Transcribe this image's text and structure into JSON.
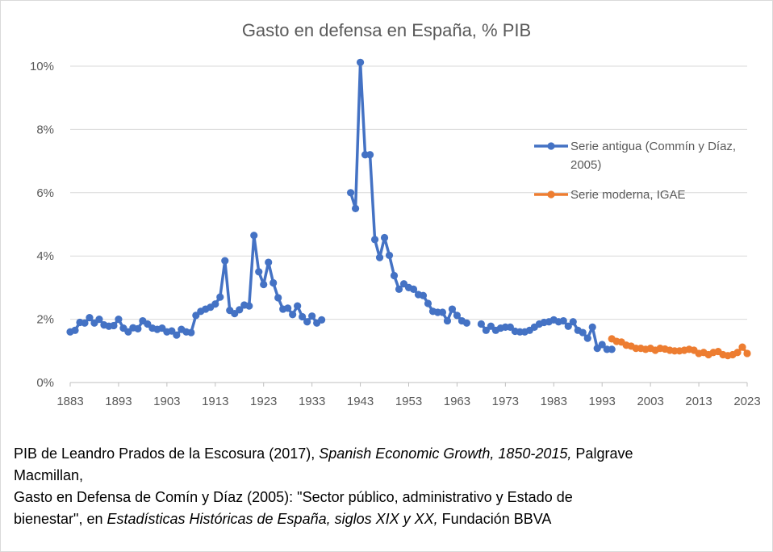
{
  "chart_data": {
    "type": "line",
    "title": "Gasto en defensa en España, % PIB",
    "xlabel": "",
    "ylabel": "",
    "xlim": [
      1883,
      2023
    ],
    "ylim": [
      0,
      10
    ],
    "x_ticks": [
      "1883",
      "1893",
      "1903",
      "1913",
      "1923",
      "1933",
      "1943",
      "1953",
      "1963",
      "1973",
      "1983",
      "1993",
      "2003",
      "2013",
      "2023"
    ],
    "y_ticks": [
      "0%",
      "2%",
      "4%",
      "6%",
      "8%",
      "10%"
    ],
    "grid": "horizontal",
    "legend_position": "right",
    "series": [
      {
        "name": "Serie antigua (Commín y Díaz, 2005)",
        "color": "#4472c4",
        "points": [
          [
            1883,
            1.6
          ],
          [
            1884,
            1.65
          ],
          [
            1885,
            1.9
          ],
          [
            1886,
            1.88
          ],
          [
            1887,
            2.05
          ],
          [
            1888,
            1.88
          ],
          [
            1889,
            2.0
          ],
          [
            1890,
            1.82
          ],
          [
            1891,
            1.78
          ],
          [
            1892,
            1.8
          ],
          [
            1893,
            2.0
          ],
          [
            1894,
            1.72
          ],
          [
            1895,
            1.6
          ],
          [
            1896,
            1.73
          ],
          [
            1897,
            1.7
          ],
          [
            1898,
            1.95
          ],
          [
            1899,
            1.85
          ],
          [
            1900,
            1.72
          ],
          [
            1901,
            1.68
          ],
          [
            1902,
            1.72
          ],
          [
            1903,
            1.6
          ],
          [
            1904,
            1.63
          ],
          [
            1905,
            1.5
          ],
          [
            1906,
            1.68
          ],
          [
            1907,
            1.6
          ],
          [
            1908,
            1.58
          ],
          [
            1909,
            2.12
          ],
          [
            1910,
            2.25
          ],
          [
            1911,
            2.32
          ],
          [
            1912,
            2.38
          ],
          [
            1913,
            2.48
          ],
          [
            1914,
            2.7
          ],
          [
            1915,
            3.85
          ],
          [
            1916,
            2.28
          ],
          [
            1917,
            2.18
          ],
          [
            1918,
            2.3
          ],
          [
            1919,
            2.45
          ],
          [
            1920,
            2.42
          ],
          [
            1921,
            4.65
          ],
          [
            1922,
            3.5
          ],
          [
            1923,
            3.1
          ],
          [
            1924,
            3.8
          ],
          [
            1925,
            3.15
          ],
          [
            1926,
            2.68
          ],
          [
            1927,
            2.32
          ],
          [
            1928,
            2.35
          ],
          [
            1929,
            2.15
          ],
          [
            1930,
            2.42
          ],
          [
            1931,
            2.08
          ],
          [
            1932,
            1.92
          ],
          [
            1933,
            2.1
          ],
          [
            1934,
            1.88
          ],
          [
            1935,
            1.98
          ],
          null,
          [
            1941,
            6.0
          ],
          [
            1942,
            5.5
          ],
          [
            1943,
            10.12
          ],
          [
            1944,
            7.2
          ],
          [
            1945,
            7.2
          ],
          [
            1946,
            4.52
          ],
          [
            1947,
            3.95
          ],
          [
            1948,
            4.58
          ],
          [
            1949,
            4.02
          ],
          [
            1950,
            3.38
          ],
          [
            1951,
            2.95
          ],
          [
            1952,
            3.12
          ],
          [
            1953,
            3.0
          ],
          [
            1954,
            2.95
          ],
          [
            1955,
            2.78
          ],
          [
            1956,
            2.75
          ],
          [
            1957,
            2.5
          ],
          [
            1958,
            2.25
          ],
          [
            1959,
            2.22
          ],
          [
            1960,
            2.22
          ],
          [
            1961,
            1.95
          ],
          [
            1962,
            2.32
          ],
          [
            1963,
            2.12
          ],
          [
            1964,
            1.95
          ],
          [
            1965,
            1.88
          ],
          null,
          [
            1968,
            1.85
          ],
          [
            1969,
            1.65
          ],
          [
            1970,
            1.78
          ],
          [
            1971,
            1.65
          ],
          [
            1972,
            1.72
          ],
          [
            1973,
            1.75
          ],
          [
            1974,
            1.75
          ],
          [
            1975,
            1.62
          ],
          [
            1976,
            1.6
          ],
          [
            1977,
            1.6
          ],
          [
            1978,
            1.65
          ],
          [
            1979,
            1.75
          ],
          [
            1980,
            1.85
          ],
          [
            1981,
            1.9
          ],
          [
            1982,
            1.92
          ],
          [
            1983,
            1.98
          ],
          [
            1984,
            1.92
          ],
          [
            1985,
            1.95
          ],
          [
            1986,
            1.78
          ],
          [
            1987,
            1.92
          ],
          [
            1988,
            1.65
          ],
          [
            1989,
            1.58
          ],
          [
            1990,
            1.4
          ],
          [
            1991,
            1.75
          ],
          [
            1992,
            1.08
          ],
          [
            1993,
            1.2
          ],
          [
            1994,
            1.05
          ],
          [
            1995,
            1.05
          ]
        ]
      },
      {
        "name": "Serie moderna, IGAE",
        "color": "#ed7d31",
        "points": [
          [
            1995,
            1.38
          ],
          [
            1996,
            1.3
          ],
          [
            1997,
            1.28
          ],
          [
            1998,
            1.18
          ],
          [
            1999,
            1.15
          ],
          [
            2000,
            1.08
          ],
          [
            2001,
            1.08
          ],
          [
            2002,
            1.05
          ],
          [
            2003,
            1.08
          ],
          [
            2004,
            1.02
          ],
          [
            2005,
            1.08
          ],
          [
            2006,
            1.06
          ],
          [
            2007,
            1.02
          ],
          [
            2008,
            1.0
          ],
          [
            2009,
            1.0
          ],
          [
            2010,
            1.02
          ],
          [
            2011,
            1.05
          ],
          [
            2012,
            1.02
          ],
          [
            2013,
            0.92
          ],
          [
            2014,
            0.95
          ],
          [
            2015,
            0.88
          ],
          [
            2016,
            0.95
          ],
          [
            2017,
            0.98
          ],
          [
            2018,
            0.88
          ],
          [
            2019,
            0.85
          ],
          [
            2020,
            0.88
          ],
          [
            2021,
            0.95
          ],
          [
            2022,
            1.12
          ],
          [
            2023,
            0.92
          ]
        ]
      }
    ],
    "legend_lines": [
      [
        "Serie antigua (Commín y Díaz,",
        "2005)"
      ],
      [
        "Serie moderna, IGAE"
      ]
    ]
  },
  "source": {
    "line1_pre": "PIB de Leandro Prados de la Escosura (2017), ",
    "line1_italic": "Spanish Economic Growth, 1850-2015,",
    "line1_post": " Palgrave",
    "line2": "Macmillan,",
    "line3": "Gasto en Defensa de Comín y Díaz (2005): \"Sector público, administrativo y Estado de",
    "line4_pre": "bienestar\", en ",
    "line4_italic": "Estadísticas Históricas de España, siglos XIX y XX,",
    "line4_post": " Fundación BBVA"
  }
}
